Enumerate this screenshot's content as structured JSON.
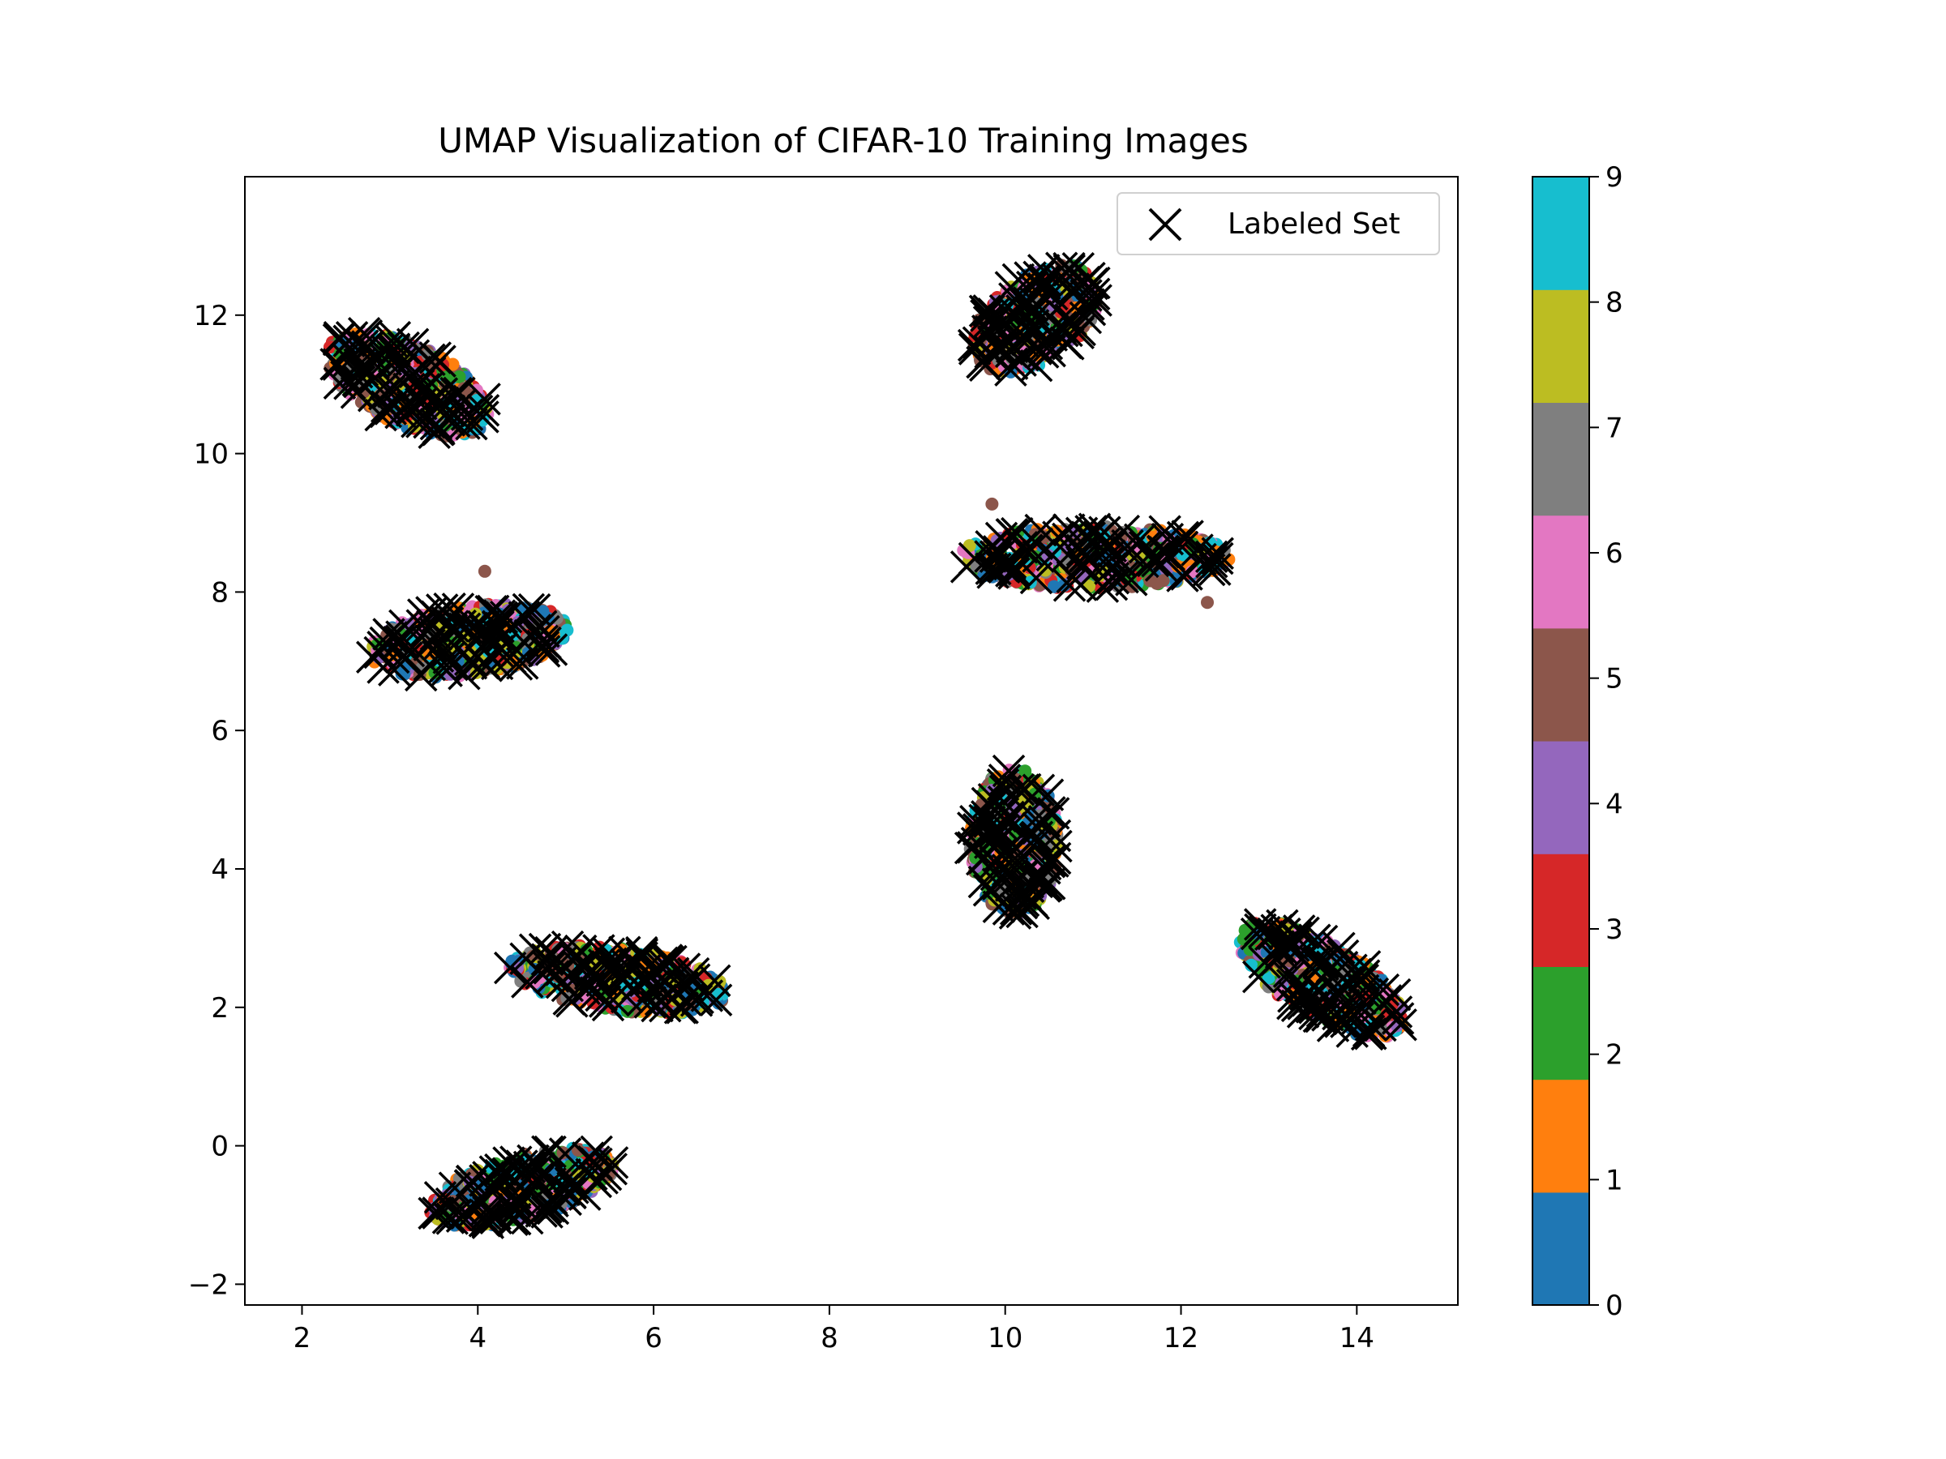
{
  "chart_data": {
    "type": "scatter",
    "title": "UMAP Visualization of CIFAR-10 Training Images",
    "xlabel": "",
    "ylabel": "",
    "xlim": [
      1.35,
      15.15
    ],
    "ylim": [
      -2.3,
      14.0
    ],
    "x_ticks": [
      2,
      4,
      6,
      8,
      10,
      12,
      14
    ],
    "y_ticks": [
      -2,
      0,
      2,
      4,
      6,
      8,
      10,
      12
    ],
    "x_tick_labels": [
      "2",
      "4",
      "6",
      "8",
      "10",
      "12",
      "14"
    ],
    "y_tick_labels": [
      "−2",
      "0",
      "2",
      "4",
      "6",
      "8",
      "10",
      "12"
    ],
    "grid": false,
    "legend": {
      "position": "top-right",
      "entries": [
        {
          "label": "Labeled Set",
          "marker": "x",
          "color": "#000000"
        }
      ]
    },
    "colorbar": {
      "min": 0,
      "max": 9,
      "ticks": [
        "0",
        "1",
        "2",
        "3",
        "4",
        "5",
        "6",
        "7",
        "8",
        "9"
      ],
      "colors": [
        "#1f77b4",
        "#ff7f0e",
        "#2ca02c",
        "#d62728",
        "#9467bd",
        "#8c564b",
        "#e377c2",
        "#7f7f7f",
        "#bcbd22",
        "#17becf"
      ]
    },
    "clusters": [
      {
        "center": [
          3.2,
          11.0
        ],
        "spread": [
          1.05,
          0.55
        ],
        "angle_deg": -35,
        "n_points": 500,
        "n_labeled": 90
      },
      {
        "center": [
          10.35,
          11.95
        ],
        "spread": [
          0.9,
          0.55
        ],
        "angle_deg": 50,
        "n_points": 500,
        "n_labeled": 90
      },
      {
        "center": [
          3.9,
          7.3
        ],
        "spread": [
          1.15,
          0.5
        ],
        "angle_deg": 10,
        "n_points": 500,
        "n_labeled": 90
      },
      {
        "center": [
          11.0,
          8.5
        ],
        "spread": [
          1.55,
          0.45
        ],
        "angle_deg": 0,
        "n_points": 500,
        "n_labeled": 90
      },
      {
        "center": [
          10.1,
          4.4
        ],
        "spread": [
          0.5,
          1.05
        ],
        "angle_deg": 0,
        "n_points": 500,
        "n_labeled": 90
      },
      {
        "center": [
          13.6,
          2.4
        ],
        "spread": [
          1.15,
          0.5
        ],
        "angle_deg": -40,
        "n_points": 500,
        "n_labeled": 90
      },
      {
        "center": [
          5.6,
          2.4
        ],
        "spread": [
          1.25,
          0.45
        ],
        "angle_deg": -10,
        "n_points": 500,
        "n_labeled": 90
      },
      {
        "center": [
          4.5,
          -0.6
        ],
        "spread": [
          1.1,
          0.45
        ],
        "angle_deg": 20,
        "n_points": 500,
        "n_labeled": 90
      }
    ],
    "outliers": [
      {
        "x": 9.85,
        "y": 9.27,
        "class": 5
      },
      {
        "x": 4.08,
        "y": 8.3,
        "class": 5
      },
      {
        "x": 12.3,
        "y": 7.85,
        "class": 5
      }
    ]
  }
}
